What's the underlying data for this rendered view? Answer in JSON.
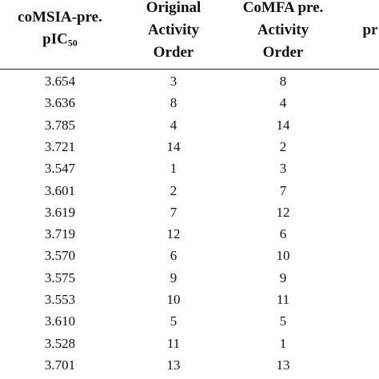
{
  "table": {
    "header": [
      {
        "lines": [
          "coMSIA-pre."
        ],
        "sub_line": {
          "text": "pIC",
          "sub": "50"
        }
      },
      {
        "lines": [
          "Original",
          "Activity",
          "Order"
        ]
      },
      {
        "lines": [
          "CoMFA pre.",
          "Activity",
          "Order"
        ]
      },
      {
        "lines": [
          "pr"
        ]
      }
    ],
    "rows": [
      [
        "3.654",
        "3",
        "8"
      ],
      [
        "3.636",
        "8",
        "4"
      ],
      [
        "3.785",
        "4",
        "14"
      ],
      [
        "3.721",
        "14",
        "2"
      ],
      [
        "3.547",
        "1",
        "3"
      ],
      [
        "3.601",
        "2",
        "7"
      ],
      [
        "3.619",
        "7",
        "12"
      ],
      [
        "3.719",
        "12",
        "6"
      ],
      [
        "3.570",
        "6",
        "10"
      ],
      [
        "3.575",
        "9",
        "9"
      ],
      [
        "3.553",
        "10",
        "11"
      ],
      [
        "3.610",
        "5",
        "5"
      ],
      [
        "3.528",
        "11",
        "1"
      ],
      [
        "3.701",
        "13",
        "13"
      ]
    ]
  }
}
